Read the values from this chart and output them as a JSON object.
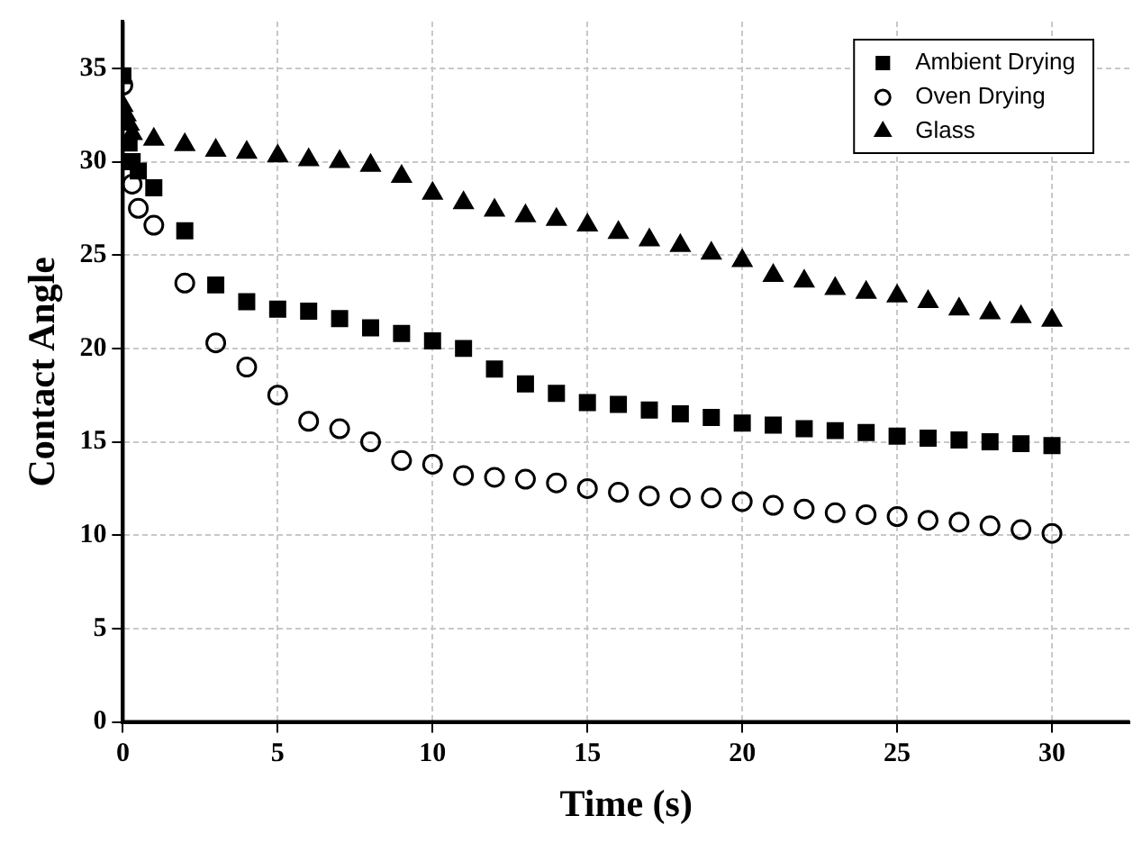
{
  "chart_data": {
    "type": "scatter",
    "xlabel": "Time (s)",
    "ylabel": "Contact Angle",
    "xlim": [
      0,
      32.5
    ],
    "ylim": [
      0,
      37.5
    ],
    "xticks": [
      0,
      5,
      10,
      15,
      20,
      25,
      30
    ],
    "yticks": [
      0,
      5,
      10,
      15,
      20,
      25,
      30,
      35
    ],
    "grid": true,
    "legend": "top right",
    "series": [
      {
        "name": "Ambient Drying",
        "color": "#000000",
        "marker": "square",
        "x": [
          0,
          0.2,
          0.3,
          0.5,
          1,
          2,
          3,
          4,
          5,
          6,
          7,
          8,
          9,
          10,
          11,
          12,
          13,
          14,
          15,
          16,
          17,
          18,
          19,
          20,
          21,
          22,
          23,
          24,
          25,
          26,
          27,
          28,
          29,
          30
        ],
        "values": [
          34.6,
          31,
          30,
          29.5,
          28.6,
          26.3,
          23.4,
          22.5,
          22.1,
          22,
          21.6,
          21.1,
          20.8,
          20.4,
          20,
          18.9,
          18.1,
          17.6,
          17.1,
          17,
          16.7,
          16.5,
          16.3,
          16,
          15.9,
          15.7,
          15.6,
          15.5,
          15.3,
          15.2,
          15.1,
          15,
          14.9,
          14.8
        ]
      },
      {
        "name": "Oven Drying",
        "color": "#000000",
        "marker": "circle",
        "x": [
          0,
          0.3,
          0.5,
          1,
          2,
          3,
          4,
          5,
          6,
          7,
          8,
          9,
          10,
          11,
          12,
          13,
          14,
          15,
          16,
          17,
          18,
          19,
          20,
          21,
          22,
          23,
          24,
          25,
          26,
          27,
          28,
          29,
          30
        ],
        "values": [
          34.1,
          28.8,
          27.5,
          26.6,
          23.5,
          20.3,
          19,
          17.5,
          16.1,
          15.7,
          15,
          14,
          13.8,
          13.2,
          13.1,
          13,
          12.8,
          12.5,
          12.3,
          12.1,
          12,
          12,
          11.8,
          11.6,
          11.4,
          11.2,
          11.1,
          11,
          10.8,
          10.7,
          10.5,
          10.3,
          10.1
        ]
      },
      {
        "name": "Glass",
        "color": "#000000",
        "marker": "triangle",
        "x": [
          0,
          0.1,
          0.2,
          0.3,
          1,
          2,
          3,
          4,
          5,
          6,
          7,
          8,
          9,
          10,
          11,
          12,
          13,
          14,
          15,
          16,
          17,
          18,
          19,
          20,
          21,
          22,
          23,
          24,
          25,
          26,
          27,
          28,
          29,
          30
        ],
        "values": [
          33,
          32.5,
          32,
          31.5,
          31.2,
          30.9,
          30.6,
          30.5,
          30.3,
          30.1,
          30,
          29.8,
          29.2,
          28.3,
          27.8,
          27.4,
          27.1,
          26.9,
          26.6,
          26.2,
          25.8,
          25.5,
          25.1,
          24.7,
          23.9,
          23.6,
          23.2,
          23,
          22.8,
          22.5,
          22.1,
          21.9,
          21.7,
          21.5
        ]
      }
    ]
  }
}
